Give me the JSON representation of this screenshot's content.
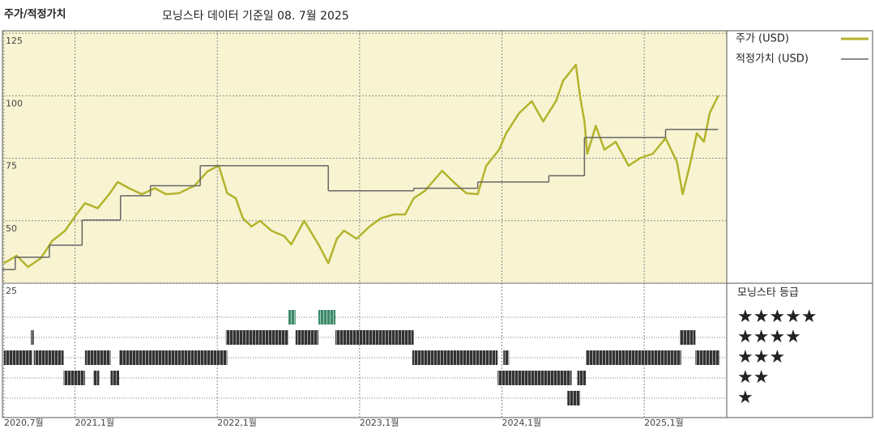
{
  "chart_data": {
    "type": "line",
    "title": "주가/적정가치",
    "subtitle": "모닝스타 데이터 기준일 08. 7월 2025",
    "xlim": [
      2020.49,
      2025.58
    ],
    "xticks": [
      {
        "value": 2020.5,
        "label": "2020,7월"
      },
      {
        "value": 2021.0,
        "label": "2021,1월"
      },
      {
        "value": 2022.0,
        "label": "2022,1월"
      },
      {
        "value": 2023.0,
        "label": "2023,1월"
      },
      {
        "value": 2024.0,
        "label": "2024,1월"
      },
      {
        "value": 2025.0,
        "label": "2025,1월"
      }
    ],
    "ylim": [
      25,
      126
    ],
    "yticks": [
      25,
      50,
      75,
      100,
      125
    ],
    "grid": true,
    "series": [
      {
        "name": "주가 (USD)",
        "color": "#b3b32c",
        "x": [
          2020.5,
          2020.59,
          2020.67,
          2020.76,
          2020.84,
          2020.93,
          2021.01,
          2021.07,
          2021.16,
          2021.24,
          2021.3,
          2021.38,
          2021.47,
          2021.56,
          2021.64,
          2021.73,
          2021.84,
          2021.93,
          2022.01,
          2022.07,
          2022.13,
          2022.18,
          2022.24,
          2022.3,
          2022.38,
          2022.47,
          2022.52,
          2022.61,
          2022.67,
          2022.72,
          2022.78,
          2022.84,
          2022.89,
          2022.98,
          2023.07,
          2023.15,
          2023.24,
          2023.32,
          2023.38,
          2023.46,
          2023.58,
          2023.66,
          2023.75,
          2023.83,
          2023.89,
          2023.98,
          2024.03,
          2024.12,
          2024.21,
          2024.29,
          2024.38,
          2024.43,
          2024.52,
          2024.55,
          2024.58,
          2024.6,
          2024.66,
          2024.72,
          2024.8,
          2024.89,
          2024.97,
          2025.06,
          2025.15,
          2025.23,
          2025.27,
          2025.32,
          2025.37,
          2025.42,
          2025.46,
          2025.52
        ],
        "values": [
          33,
          36,
          31.5,
          35,
          42,
          46,
          52.5,
          57,
          55,
          60.6,
          65.5,
          63,
          60.6,
          63,
          60.6,
          61,
          64,
          69.7,
          72,
          61,
          59,
          51,
          47.7,
          50,
          46,
          43.8,
          40.5,
          50,
          44.4,
          39.6,
          33,
          42.8,
          46,
          42.8,
          47.7,
          51,
          52.5,
          52.5,
          59,
          62,
          70,
          65.5,
          61,
          60.6,
          72,
          78.4,
          85,
          93,
          97.8,
          89.7,
          97.8,
          106,
          112.4,
          99.5,
          89.7,
          76.8,
          88,
          78.4,
          81.6,
          72,
          75,
          76.8,
          83,
          73.6,
          60.6,
          72,
          85,
          81.6,
          93,
          100
        ]
      },
      {
        "name": "적정가치 (USD)",
        "color": "#666666",
        "step": true,
        "x": [
          2020.49,
          2020.58,
          2020.82,
          2021.05,
          2021.32,
          2021.53,
          2021.88,
          2022.78,
          2023.38,
          2023.83,
          2024.33,
          2024.58,
          2025.15,
          2025.52
        ],
        "values": [
          30.5,
          35.4,
          40.2,
          50.3,
          60,
          64,
          72,
          62,
          63,
          65.5,
          68,
          83.3,
          86.5,
          86.5
        ]
      }
    ],
    "rating": {
      "title": "모닝스타 등급",
      "levels": [
        {
          "stars": 5,
          "label": "★★★★★",
          "color": "#3d8a6a",
          "periods": [
            [
              2022.5,
              2022.55
            ],
            [
              2022.71,
              2022.83
            ]
          ]
        },
        {
          "stars": 4,
          "label": "★★★★",
          "color": "#333333",
          "periods": [
            [
              2020.69,
              2020.71
            ],
            [
              2022.06,
              2022.5
            ],
            [
              2022.55,
              2022.71
            ],
            [
              2022.83,
              2023.38
            ],
            [
              2025.25,
              2025.36
            ]
          ]
        },
        {
          "stars": 3,
          "label": "★★★",
          "color": "#333333",
          "periods": [
            [
              2020.5,
              2020.7
            ],
            [
              2020.71,
              2020.92
            ],
            [
              2021.07,
              2021.25
            ],
            [
              2021.31,
              2022.07
            ],
            [
              2023.37,
              2023.97
            ],
            [
              2024.01,
              2024.05
            ],
            [
              2024.59,
              2025.26
            ],
            [
              2025.36,
              2025.53
            ]
          ]
        },
        {
          "stars": 2,
          "label": "★★",
          "color": "#333333",
          "periods": [
            [
              2020.92,
              2021.07
            ],
            [
              2021.13,
              2021.17
            ],
            [
              2021.25,
              2021.31
            ],
            [
              2023.97,
              2024.49
            ],
            [
              2024.53,
              2024.59
            ]
          ]
        },
        {
          "stars": 1,
          "label": "★",
          "color": "#333333",
          "periods": [
            [
              2024.46,
              2024.55
            ]
          ]
        }
      ]
    }
  }
}
